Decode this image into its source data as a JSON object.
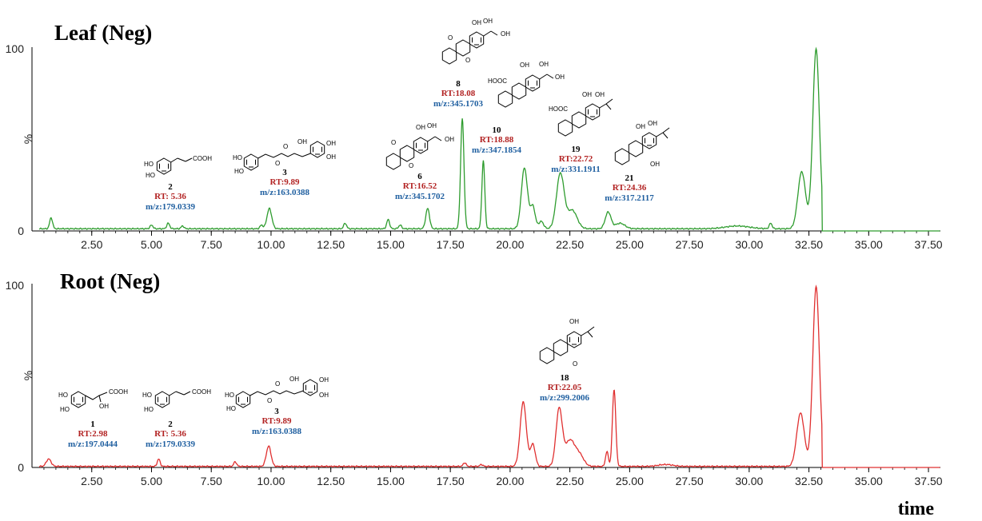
{
  "chart_data": [
    {
      "type": "line",
      "title": "Leaf (Neg)",
      "ylabel": "%",
      "xlabel": "",
      "xlim": [
        0.0,
        38.0
      ],
      "ylim": [
        0,
        100
      ],
      "xticks": [
        "2.50",
        "5.00",
        "7.50",
        "10.00",
        "12.50",
        "15.00",
        "17.50",
        "20.00",
        "22.50",
        "25.00",
        "27.50",
        "30.00",
        "32.50",
        "35.00",
        "37.50"
      ],
      "yticks": [
        "0",
        "%",
        "100"
      ],
      "color": "#2e9c2e",
      "baseline": 1.2,
      "series": [
        {
          "peaks": [
            {
              "rt": 0.8,
              "h": 6,
              "w": 0.06
            },
            {
              "rt": 5.0,
              "h": 2,
              "w": 0.06
            },
            {
              "rt": 5.7,
              "h": 3,
              "w": 0.06
            },
            {
              "rt": 6.3,
              "h": 1.5,
              "w": 0.06
            },
            {
              "rt": 9.6,
              "h": 2,
              "w": 0.06
            },
            {
              "rt": 9.93,
              "h": 11,
              "w": 0.1
            },
            {
              "rt": 13.1,
              "h": 3,
              "w": 0.06
            },
            {
              "rt": 14.9,
              "h": 5,
              "w": 0.06
            },
            {
              "rt": 15.4,
              "h": 2,
              "w": 0.06
            },
            {
              "rt": 16.55,
              "h": 11,
              "w": 0.08
            },
            {
              "rt": 18.0,
              "h": 60,
              "w": 0.07
            },
            {
              "rt": 18.88,
              "h": 37,
              "w": 0.06
            },
            {
              "rt": 20.6,
              "h": 33,
              "w": 0.13
            },
            {
              "rt": 20.95,
              "h": 12,
              "w": 0.1
            },
            {
              "rt": 21.3,
              "h": 4,
              "w": 0.1
            },
            {
              "rt": 22.1,
              "h": 30,
              "w": 0.16
            },
            {
              "rt": 22.6,
              "h": 10,
              "w": 0.2
            },
            {
              "rt": 24.1,
              "h": 9,
              "w": 0.12
            },
            {
              "rt": 24.6,
              "h": 3,
              "w": 0.2
            },
            {
              "rt": 29.5,
              "h": 1.5,
              "w": 0.5
            },
            {
              "rt": 30.9,
              "h": 3,
              "w": 0.06
            },
            {
              "rt": 32.2,
              "h": 31,
              "w": 0.16
            },
            {
              "rt": 32.8,
              "h": 98,
              "w": 0.14
            }
          ],
          "cutoff": 33.05
        }
      ],
      "annotations": [
        {
          "number": "2",
          "rt_label": "RT: 5.36",
          "mz_label": "m/z:179.0339",
          "chem": [
            "HO",
            "HO",
            "COOH"
          ]
        },
        {
          "number": "3",
          "rt_label": "RT:9.89",
          "mz_label": "m/z:163.0388",
          "chem": [
            "HO",
            "HO",
            "OH",
            "OH",
            "O",
            "OH",
            "O"
          ]
        },
        {
          "number": "6",
          "rt_label": "RT:16.52",
          "mz_label": "m/z:345.1702",
          "chem": [
            "OH",
            "OH",
            "OH",
            "O",
            "O"
          ]
        },
        {
          "number": "8",
          "rt_label": "RT:18.08",
          "mz_label": "m/z:345.1703",
          "chem": [
            "OH",
            "OH",
            "OH",
            "O",
            "O"
          ]
        },
        {
          "number": "10",
          "rt_label": "RT:18.88",
          "mz_label": "m/z:347.1854",
          "chem": [
            "OH",
            "OH",
            "OH",
            "HOOC"
          ]
        },
        {
          "number": "19",
          "rt_label": "RT:22.72",
          "mz_label": "m/z:331.1911",
          "chem": [
            "OH",
            "HOOC",
            "OH"
          ]
        },
        {
          "number": "21",
          "rt_label": "RT:24.36",
          "mz_label": "m/z:317.2117",
          "chem": [
            "OH",
            "OH",
            "OH"
          ]
        }
      ]
    },
    {
      "type": "line",
      "title": "Root (Neg)",
      "ylabel": "%",
      "xlabel": "time",
      "xlim": [
        0.0,
        38.0
      ],
      "ylim": [
        0,
        100
      ],
      "xticks": [
        "2.50",
        "5.00",
        "7.50",
        "10.00",
        "12.50",
        "15.00",
        "17.50",
        "20.00",
        "22.50",
        "25.00",
        "27.50",
        "30.00",
        "32.50",
        "35.00",
        "37.50"
      ],
      "yticks": [
        "0",
        "%",
        "100"
      ],
      "color": "#e03030",
      "baseline": 0.6,
      "series": [
        {
          "peaks": [
            {
              "rt": 0.7,
              "h": 4,
              "w": 0.1
            },
            {
              "rt": 5.3,
              "h": 4,
              "w": 0.06
            },
            {
              "rt": 8.5,
              "h": 2.5,
              "w": 0.06
            },
            {
              "rt": 9.9,
              "h": 11,
              "w": 0.1
            },
            {
              "rt": 18.1,
              "h": 2,
              "w": 0.06
            },
            {
              "rt": 18.8,
              "h": 1,
              "w": 0.06
            },
            {
              "rt": 20.55,
              "h": 35,
              "w": 0.13
            },
            {
              "rt": 20.95,
              "h": 12,
              "w": 0.1
            },
            {
              "rt": 22.05,
              "h": 31,
              "w": 0.13
            },
            {
              "rt": 22.5,
              "h": 14,
              "w": 0.2
            },
            {
              "rt": 22.9,
              "h": 6,
              "w": 0.18
            },
            {
              "rt": 24.05,
              "h": 8,
              "w": 0.06
            },
            {
              "rt": 24.35,
              "h": 42,
              "w": 0.07
            },
            {
              "rt": 26.5,
              "h": 1,
              "w": 0.3
            },
            {
              "rt": 32.15,
              "h": 29,
              "w": 0.16
            },
            {
              "rt": 32.8,
              "h": 98,
              "w": 0.14
            }
          ],
          "cutoff": 33.05
        }
      ],
      "annotations": [
        {
          "number": "1",
          "rt_label": "RT:2.98",
          "mz_label": "m/z:197.0444",
          "chem": [
            "HO",
            "HO",
            "COOH",
            "OH"
          ]
        },
        {
          "number": "2",
          "rt_label": "RT: 5.36",
          "mz_label": "m/z:179.0339",
          "chem": [
            "HO",
            "HO",
            "COOH"
          ]
        },
        {
          "number": "3",
          "rt_label": "RT:9.89",
          "mz_label": "m/z:163.0388",
          "chem": [
            "HO",
            "HO",
            "OH",
            "OH",
            "O",
            "OH",
            "O"
          ]
        },
        {
          "number": "18",
          "rt_label": "RT:22.05",
          "mz_label": "m/z:299.2006",
          "chem": [
            "OH",
            "O"
          ]
        }
      ]
    }
  ]
}
